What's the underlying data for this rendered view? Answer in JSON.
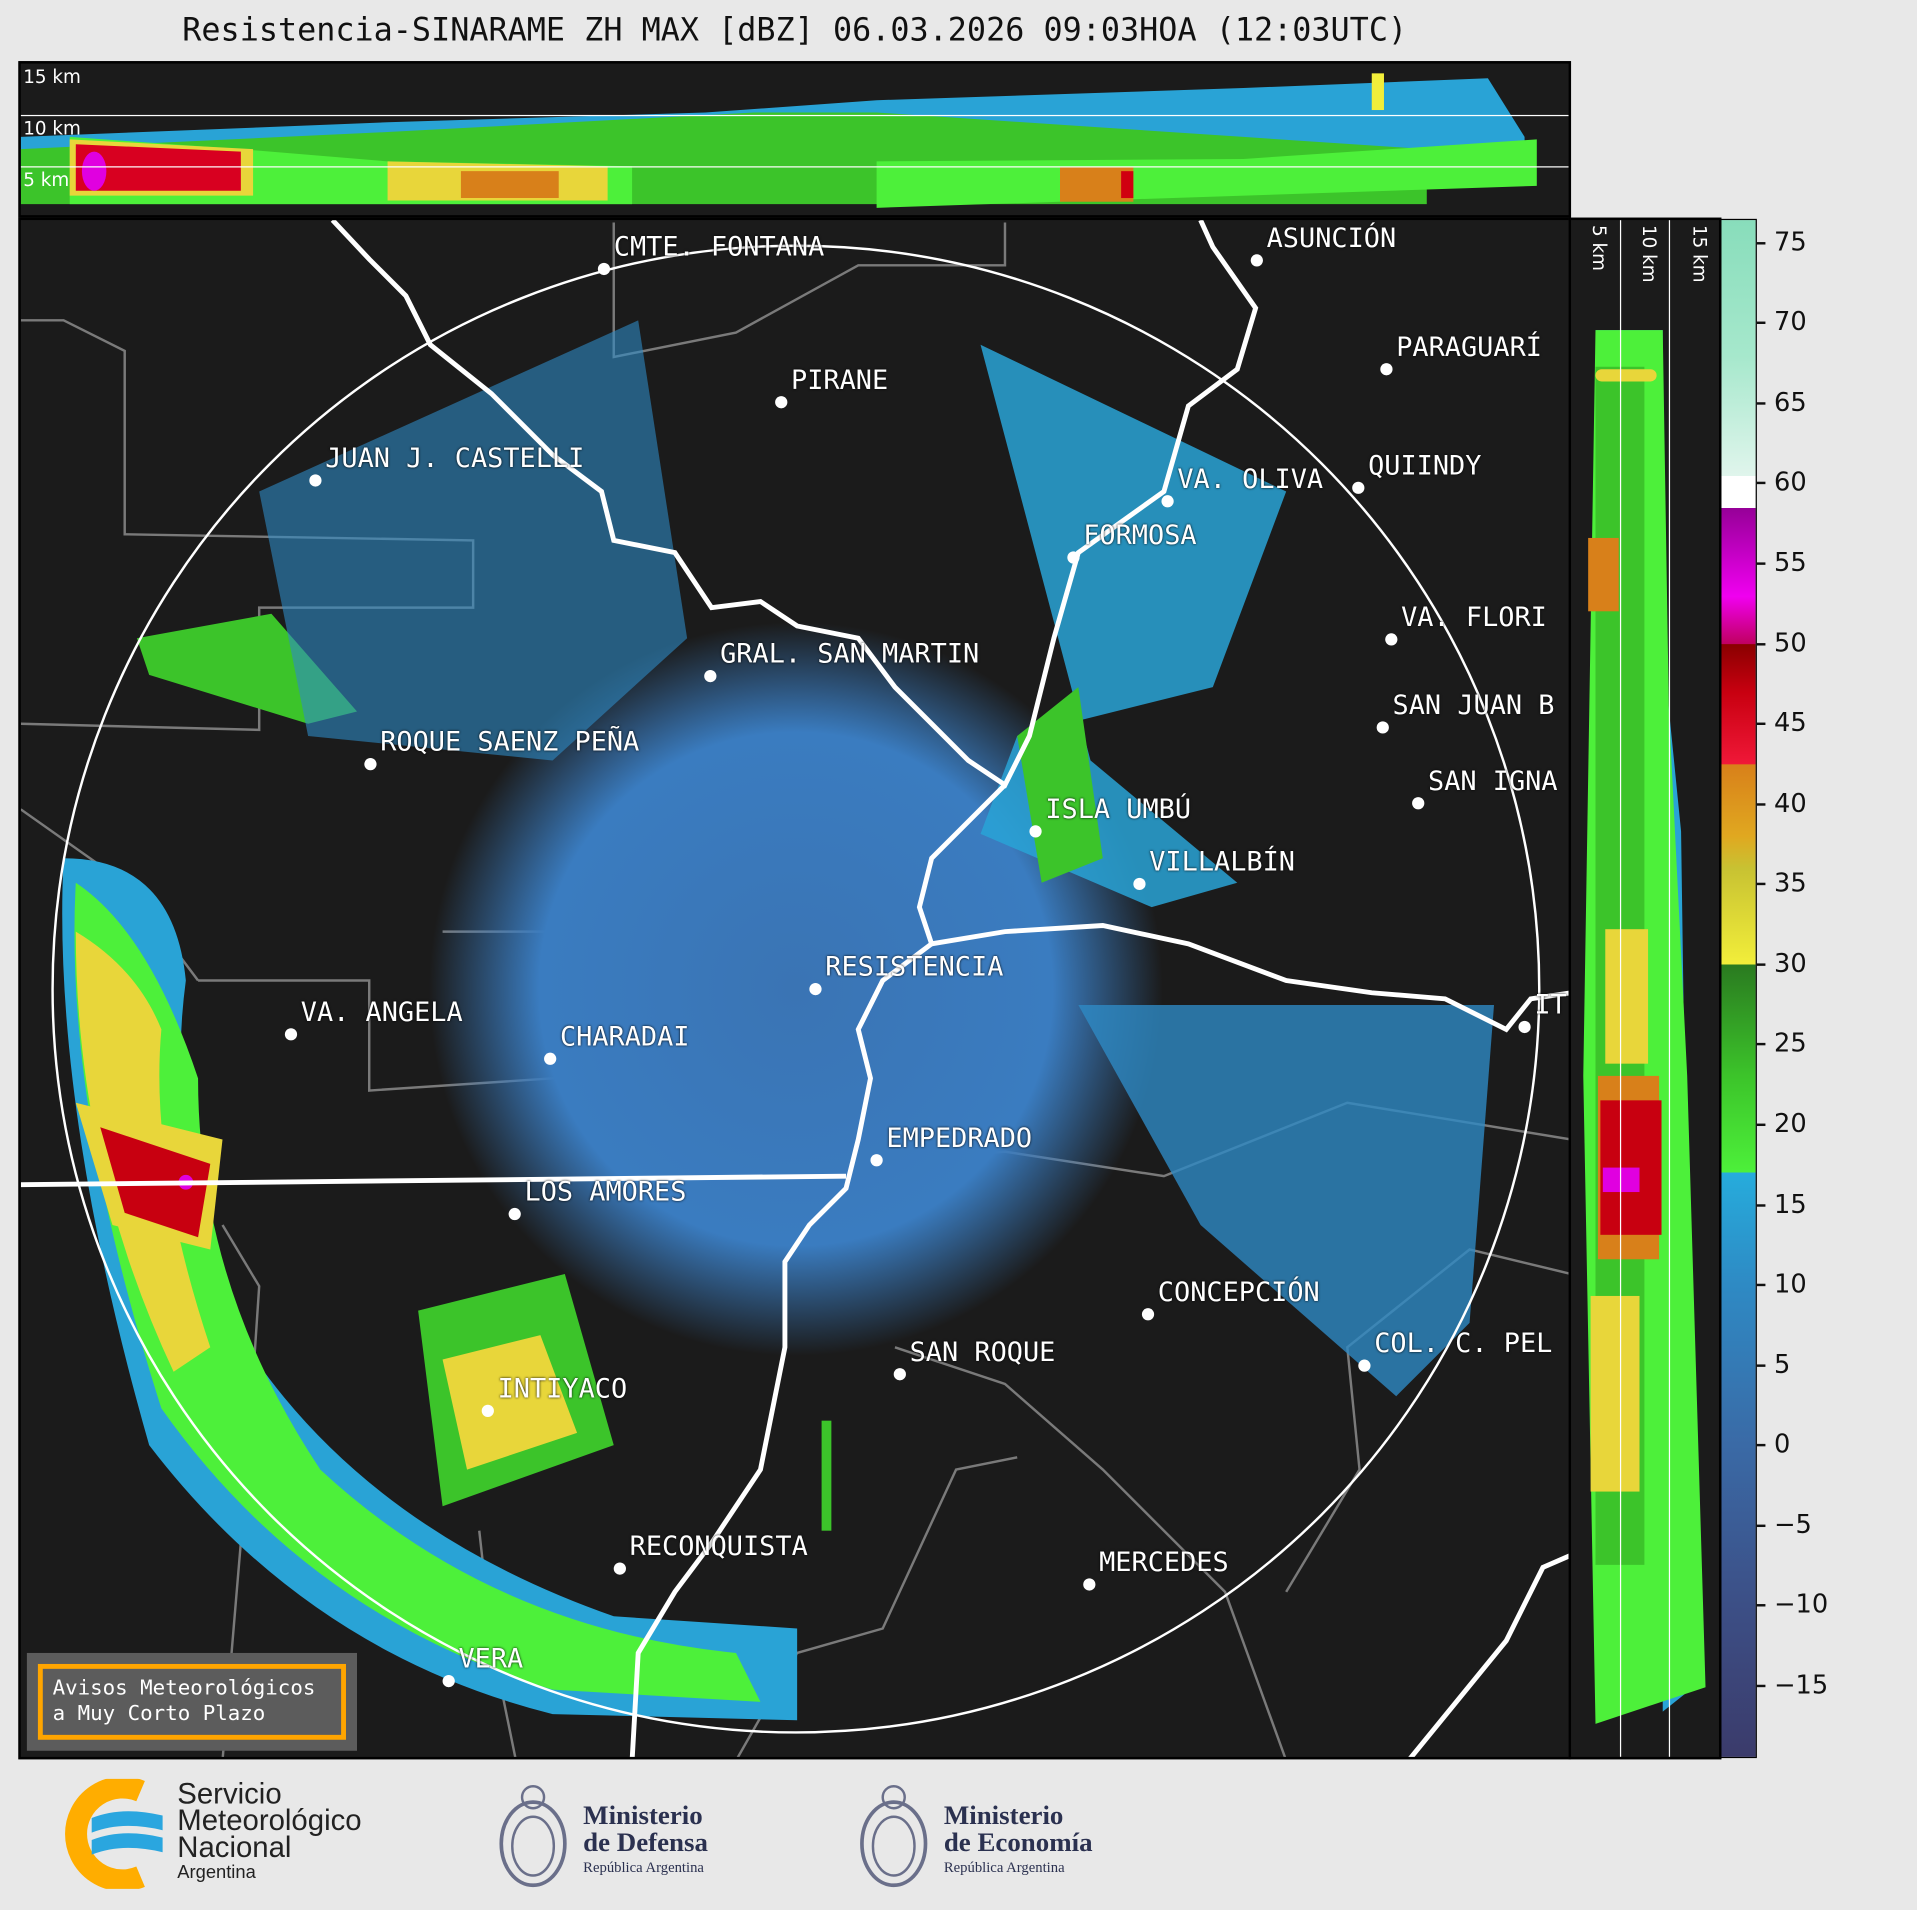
{
  "title": "Resistencia-SINARAME ZH MAX [dBZ] 06.03.2026 09:03HOA (12:03UTC)",
  "top_panel": {
    "labels": [
      "15 km",
      "10 km",
      "5 km"
    ]
  },
  "right_panel": {
    "labels": [
      "5 km",
      "10 km",
      "15 km"
    ]
  },
  "colorbar": {
    "unit": "dBZ",
    "range": [
      -19.5,
      76.5
    ],
    "ticks": [
      "75",
      "70",
      "65",
      "60",
      "55",
      "50",
      "45",
      "40",
      "35",
      "30",
      "25",
      "20",
      "15",
      "10",
      "5",
      "0",
      "−5",
      "−10",
      "−15"
    ],
    "tick_values": [
      75,
      70,
      65,
      60,
      55,
      50,
      45,
      40,
      35,
      30,
      25,
      20,
      15,
      10,
      5,
      0,
      -5,
      -10,
      -15
    ],
    "color_stops": [
      {
        "v": -19.5,
        "c": "#3b3b6b"
      },
      {
        "v": -10,
        "c": "#3c4f86"
      },
      {
        "v": 0,
        "c": "#3a6aa6"
      },
      {
        "v": 10,
        "c": "#2e8ac4"
      },
      {
        "v": 17,
        "c": "#26acdc"
      },
      {
        "v": 17.01,
        "c": "#4df03a"
      },
      {
        "v": 23,
        "c": "#3cc42a"
      },
      {
        "v": 30,
        "c": "#2a7a20"
      },
      {
        "v": 30.01,
        "c": "#f2ee3a"
      },
      {
        "v": 36,
        "c": "#c8c232"
      },
      {
        "v": 38,
        "c": "#e0a820"
      },
      {
        "v": 42.5,
        "c": "#d8801a"
      },
      {
        "v": 42.51,
        "c": "#f01838"
      },
      {
        "v": 47,
        "c": "#c80010"
      },
      {
        "v": 50,
        "c": "#8a0000"
      },
      {
        "v": 50.01,
        "c": "#c00060"
      },
      {
        "v": 53,
        "c": "#f000f0"
      },
      {
        "v": 58.5,
        "c": "#960098"
      },
      {
        "v": 58.51,
        "c": "#ffffff"
      },
      {
        "v": 60.5,
        "c": "#ffffff"
      },
      {
        "v": 60.51,
        "c": "#e0f5ec"
      },
      {
        "v": 68,
        "c": "#a6e8cc"
      },
      {
        "v": 76.5,
        "c": "#88ddbb"
      }
    ]
  },
  "cities": [
    {
      "name": "CMTE. FONTANA"
    },
    {
      "name": "ASUNCIÓN"
    },
    {
      "name": "PIRANE"
    },
    {
      "name": "PARAGUARÍ"
    },
    {
      "name": "JUAN J. CASTELLI"
    },
    {
      "name": "VA. OLIVA"
    },
    {
      "name": "QUIINDY"
    },
    {
      "name": "FORMOSA"
    },
    {
      "name": "VA. FLORI"
    },
    {
      "name": "GRAL. SAN MARTIN"
    },
    {
      "name": "SAN JUAN B"
    },
    {
      "name": "ROQUE SAENZ PEÑA"
    },
    {
      "name": "SAN IGNA"
    },
    {
      "name": "ISLA UMBÚ"
    },
    {
      "name": "VILLALBÍN"
    },
    {
      "name": "RESISTENCIA"
    },
    {
      "name": "IT"
    },
    {
      "name": "VA. ANGELA"
    },
    {
      "name": "CHARADAI"
    },
    {
      "name": "EMPEDRADO"
    },
    {
      "name": "LOS AMORES"
    },
    {
      "name": "CONCEPCIÓN"
    },
    {
      "name": "COL. C. PEL"
    },
    {
      "name": "SAN ROQUE"
    },
    {
      "name": "INTIYACO"
    },
    {
      "name": "RECONQUISTA"
    },
    {
      "name": "MERCEDES"
    },
    {
      "name": "VERA"
    }
  ],
  "notice": {
    "line1": "Avisos Meteorológicos",
    "line2": "a Muy Corto Plazo"
  },
  "logos": {
    "smn": {
      "line1": "Servicio",
      "line2": "Meteorológico",
      "line3": "Nacional",
      "line4": "Argentina"
    },
    "defensa": {
      "line1": "Ministerio",
      "line2": "de Defensa",
      "line3": "República Argentina"
    },
    "economia": {
      "line1": "Ministerio",
      "line2": "de Economía",
      "line3": "República Argentina"
    }
  }
}
